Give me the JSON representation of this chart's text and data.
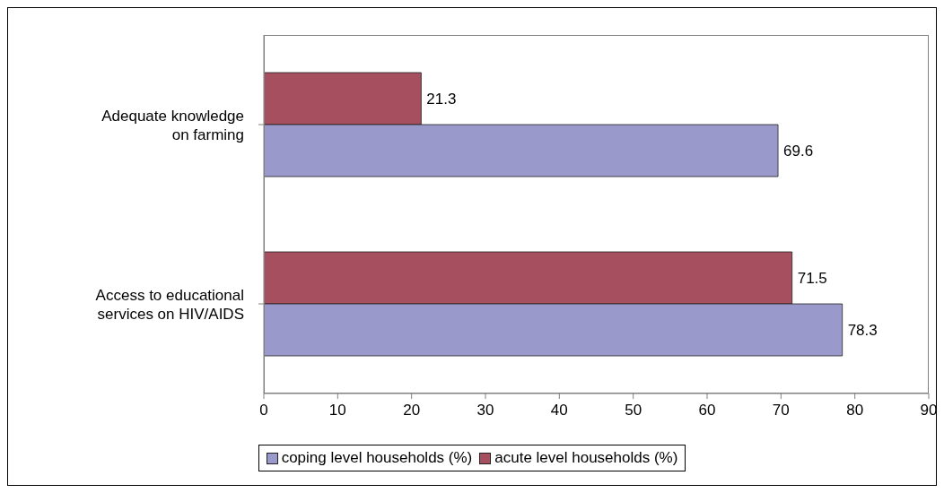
{
  "chart_data": {
    "type": "bar",
    "orientation": "horizontal",
    "categories": [
      "Adequate knowledge on farming",
      "Access to educational services on HIV/AIDS"
    ],
    "series": [
      {
        "name": "acute level households (%)",
        "color": "#a64f5e",
        "values": [
          21.3,
          71.5
        ]
      },
      {
        "name": "coping level households (%)",
        "color": "#9999cc",
        "values": [
          69.6,
          78.3
        ]
      }
    ],
    "xlim": [
      0,
      90
    ],
    "xticks": [
      0,
      10,
      20,
      30,
      40,
      50,
      60,
      70,
      80,
      90
    ],
    "data_labels": true,
    "grid": false,
    "legend": "bottom"
  }
}
